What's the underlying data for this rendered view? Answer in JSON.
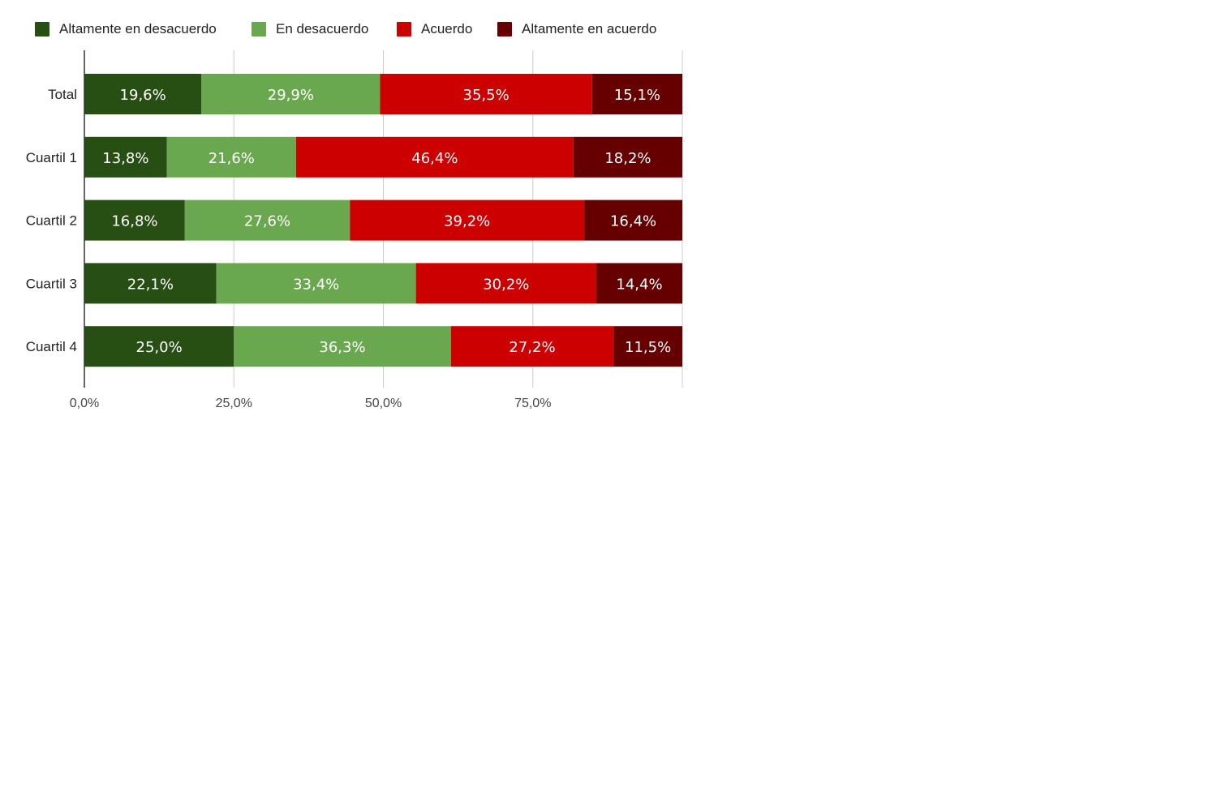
{
  "chart_data": {
    "type": "bar",
    "orientation": "horizontal",
    "stacked": "percent",
    "categories": [
      "Total",
      "Cuartil 1",
      "Cuartil 2",
      "Cuartil 3",
      "Cuartil 4"
    ],
    "series": [
      {
        "name": "Altamente en desacuerdo",
        "color": "#274e13",
        "values": [
          19.6,
          13.8,
          16.8,
          22.1,
          25.0
        ],
        "labels": [
          "19,6%",
          "13,8%",
          "16,8%",
          "22,1%",
          "25,0%"
        ]
      },
      {
        "name": "En desacuerdo",
        "color": "#6aa84f",
        "values": [
          29.9,
          21.6,
          27.6,
          33.4,
          36.3
        ],
        "labels": [
          "29,9%",
          "21,6%",
          "27,6%",
          "33,4%",
          "36,3%"
        ]
      },
      {
        "name": "Acuerdo",
        "color": "#cc0000",
        "values": [
          35.5,
          46.4,
          39.2,
          30.2,
          27.2
        ],
        "labels": [
          "35,5%",
          "46,4%",
          "39,2%",
          "30,2%",
          "27,2%"
        ]
      },
      {
        "name": "Altamente en acuerdo",
        "color": "#660000",
        "values": [
          15.1,
          18.2,
          16.4,
          14.4,
          11.5
        ],
        "labels": [
          "15,1%",
          "18,2%",
          "16,4%",
          "14,4%",
          "11,5%"
        ]
      }
    ],
    "xlim": [
      0,
      100
    ],
    "x_ticks": [
      0,
      25,
      50,
      75
    ],
    "x_tick_labels": [
      "0,0%",
      "25,0%",
      "50,0%",
      "75,0%"
    ],
    "grid": true,
    "legend": "top-left",
    "title": "",
    "xlabel": "",
    "ylabel": ""
  }
}
